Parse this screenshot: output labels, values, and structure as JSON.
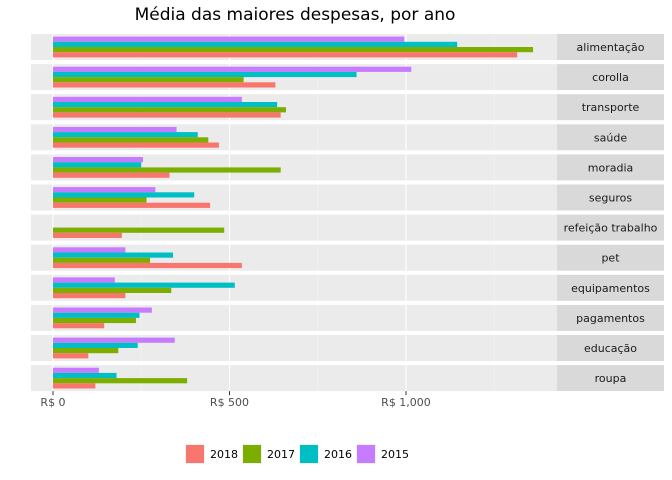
{
  "chart_data": {
    "type": "bar",
    "orientation": "horizontal",
    "facet": "category",
    "title": "Média das maiores despesas, por ano",
    "xlabel": "",
    "ylabel": "",
    "xlim": [
      0,
      1420
    ],
    "xticks": [
      0,
      500,
      1000
    ],
    "xtick_labels": [
      "R$ 0",
      "R$ 500",
      "R$ 1,000"
    ],
    "grid": true,
    "legend_position": "bottom",
    "categories": [
      "alimentação",
      "corolla",
      "transporte",
      "saúde",
      "moradia",
      "seguros",
      "refeição trabalho",
      "pet",
      "equipamentos",
      "pagamentos",
      "educação",
      "roupa"
    ],
    "series": [
      {
        "name": "2015",
        "color": "#C77CFF",
        "values": [
          995,
          1015,
          535,
          350,
          255,
          290,
          null,
          205,
          175,
          280,
          345,
          130
        ]
      },
      {
        "name": "2016",
        "color": "#00BFC4",
        "values": [
          1145,
          860,
          635,
          410,
          250,
          400,
          null,
          340,
          515,
          245,
          240,
          180
        ]
      },
      {
        "name": "2017",
        "color": "#7CAE00",
        "values": [
          1360,
          540,
          660,
          440,
          645,
          265,
          485,
          275,
          335,
          235,
          185,
          380
        ]
      },
      {
        "name": "2018",
        "color": "#F8766D",
        "values": [
          1315,
          630,
          645,
          470,
          330,
          445,
          195,
          535,
          205,
          145,
          100,
          120
        ]
      }
    ],
    "legend_order": [
      "2018",
      "2017",
      "2016",
      "2015"
    ]
  }
}
